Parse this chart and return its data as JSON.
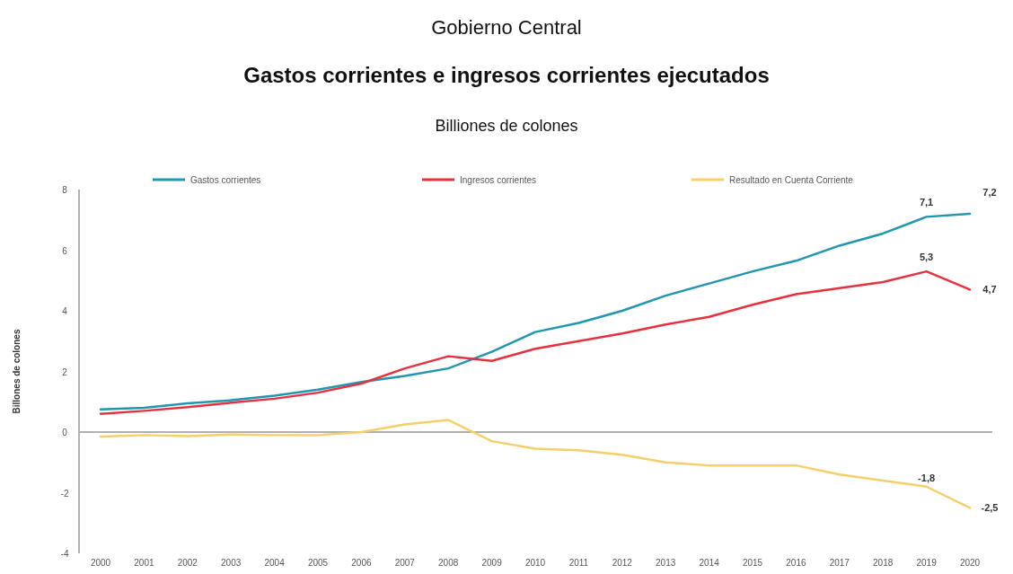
{
  "chart_data": {
    "type": "line",
    "title": "Gobierno Central",
    "subtitle": "Gastos corrientes e ingresos corrientes ejecutados",
    "annotations": [
      "Billiones de colones"
    ],
    "ylabel": "Billones de colones",
    "categories": [
      "2000",
      "2001",
      "2002",
      "2003",
      "2004",
      "2005",
      "2006",
      "2007",
      "2008",
      "2009",
      "2010",
      "2011",
      "2012",
      "2013",
      "2014",
      "2015",
      "2016",
      "2017",
      "2018",
      "2019",
      "2020"
    ],
    "series": [
      {
        "name": "Gastos corrientes",
        "color": "#2196b0",
        "values": [
          0.75,
          0.8,
          0.95,
          1.05,
          1.2,
          1.4,
          1.65,
          1.85,
          2.1,
          2.65,
          3.3,
          3.6,
          4.0,
          4.5,
          4.9,
          5.3,
          5.65,
          6.15,
          6.55,
          7.1,
          7.2
        ],
        "value_labels": [
          null,
          null,
          null,
          null,
          null,
          null,
          null,
          null,
          null,
          null,
          null,
          null,
          null,
          null,
          null,
          null,
          null,
          null,
          null,
          "7,1",
          "7,2"
        ]
      },
      {
        "name": "Ingresos corrientes",
        "color": "#e8313f",
        "values": [
          0.6,
          0.7,
          0.82,
          0.97,
          1.1,
          1.3,
          1.6,
          2.1,
          2.5,
          2.35,
          2.75,
          3.0,
          3.25,
          3.55,
          3.8,
          4.2,
          4.55,
          4.75,
          4.95,
          5.3,
          4.7
        ],
        "value_labels": [
          null,
          null,
          null,
          null,
          null,
          null,
          null,
          null,
          null,
          null,
          null,
          null,
          null,
          null,
          null,
          null,
          null,
          null,
          null,
          "5,3",
          "4,7"
        ]
      },
      {
        "name": "Resultado en Cuenta Corriente",
        "color": "#f5cf6a",
        "values": [
          -0.15,
          -0.1,
          -0.13,
          -0.08,
          -0.1,
          -0.1,
          0,
          0.25,
          0.4,
          -0.3,
          -0.55,
          -0.6,
          -0.75,
          -1.0,
          -1.1,
          -1.1,
          -1.1,
          -1.4,
          -1.6,
          -1.8,
          -2.5
        ],
        "value_labels": [
          null,
          null,
          null,
          null,
          null,
          null,
          null,
          null,
          null,
          null,
          null,
          null,
          null,
          null,
          null,
          null,
          null,
          null,
          null,
          "-1,8",
          "-2,5"
        ]
      }
    ],
    "ylim": [
      -4,
      8
    ],
    "yticks": [
      -4,
      -2,
      0,
      2,
      4,
      6,
      8
    ],
    "ref_lines": [
      {
        "axis": "y",
        "value": 0,
        "color": "#b0b0b0"
      }
    ],
    "legend": "top",
    "marker": "none",
    "line_style": "solid"
  }
}
